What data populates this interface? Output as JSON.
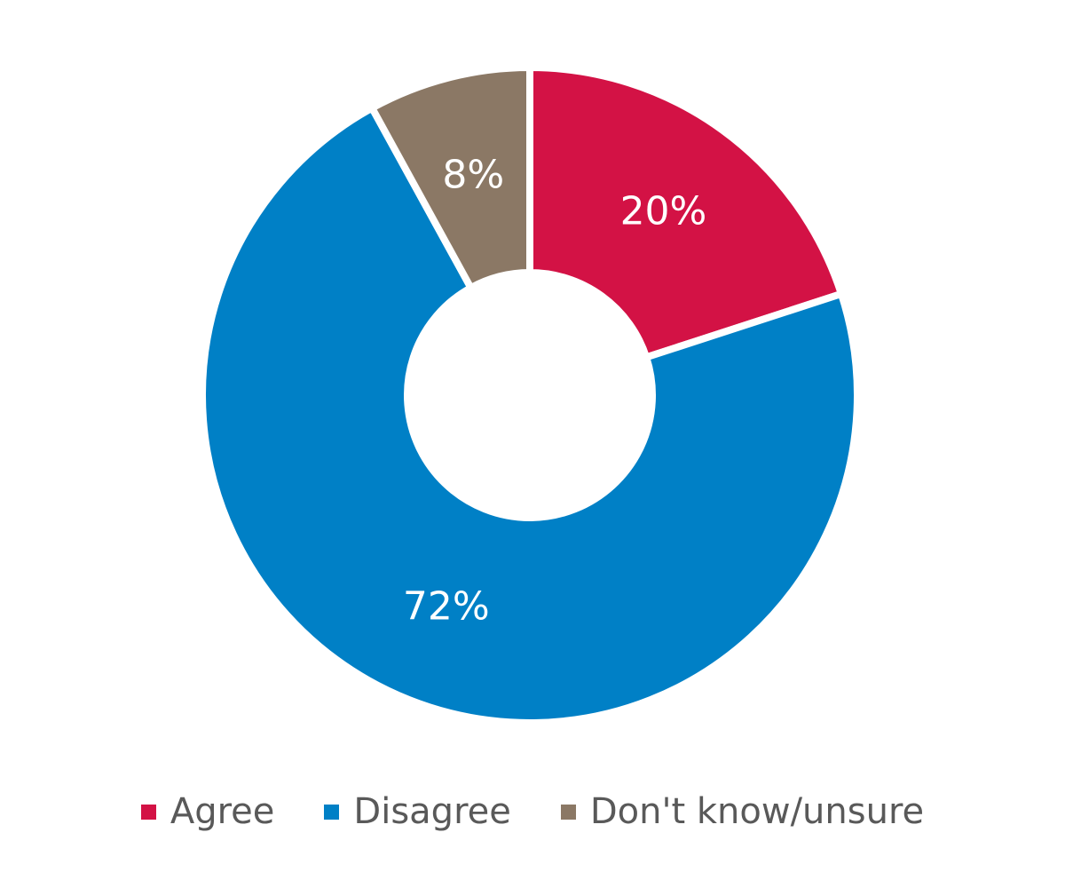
{
  "chart_data": {
    "type": "pie",
    "title": "",
    "donut": true,
    "categories": [
      "Agree",
      "Disagree",
      "Don't know/unsure"
    ],
    "values": [
      20,
      72,
      8
    ],
    "labels": [
      "20%",
      "72%",
      "8%"
    ],
    "colors": [
      "#D31245",
      "#0080C6",
      "#8B7865"
    ],
    "legend_position": "bottom",
    "unit": "%"
  }
}
